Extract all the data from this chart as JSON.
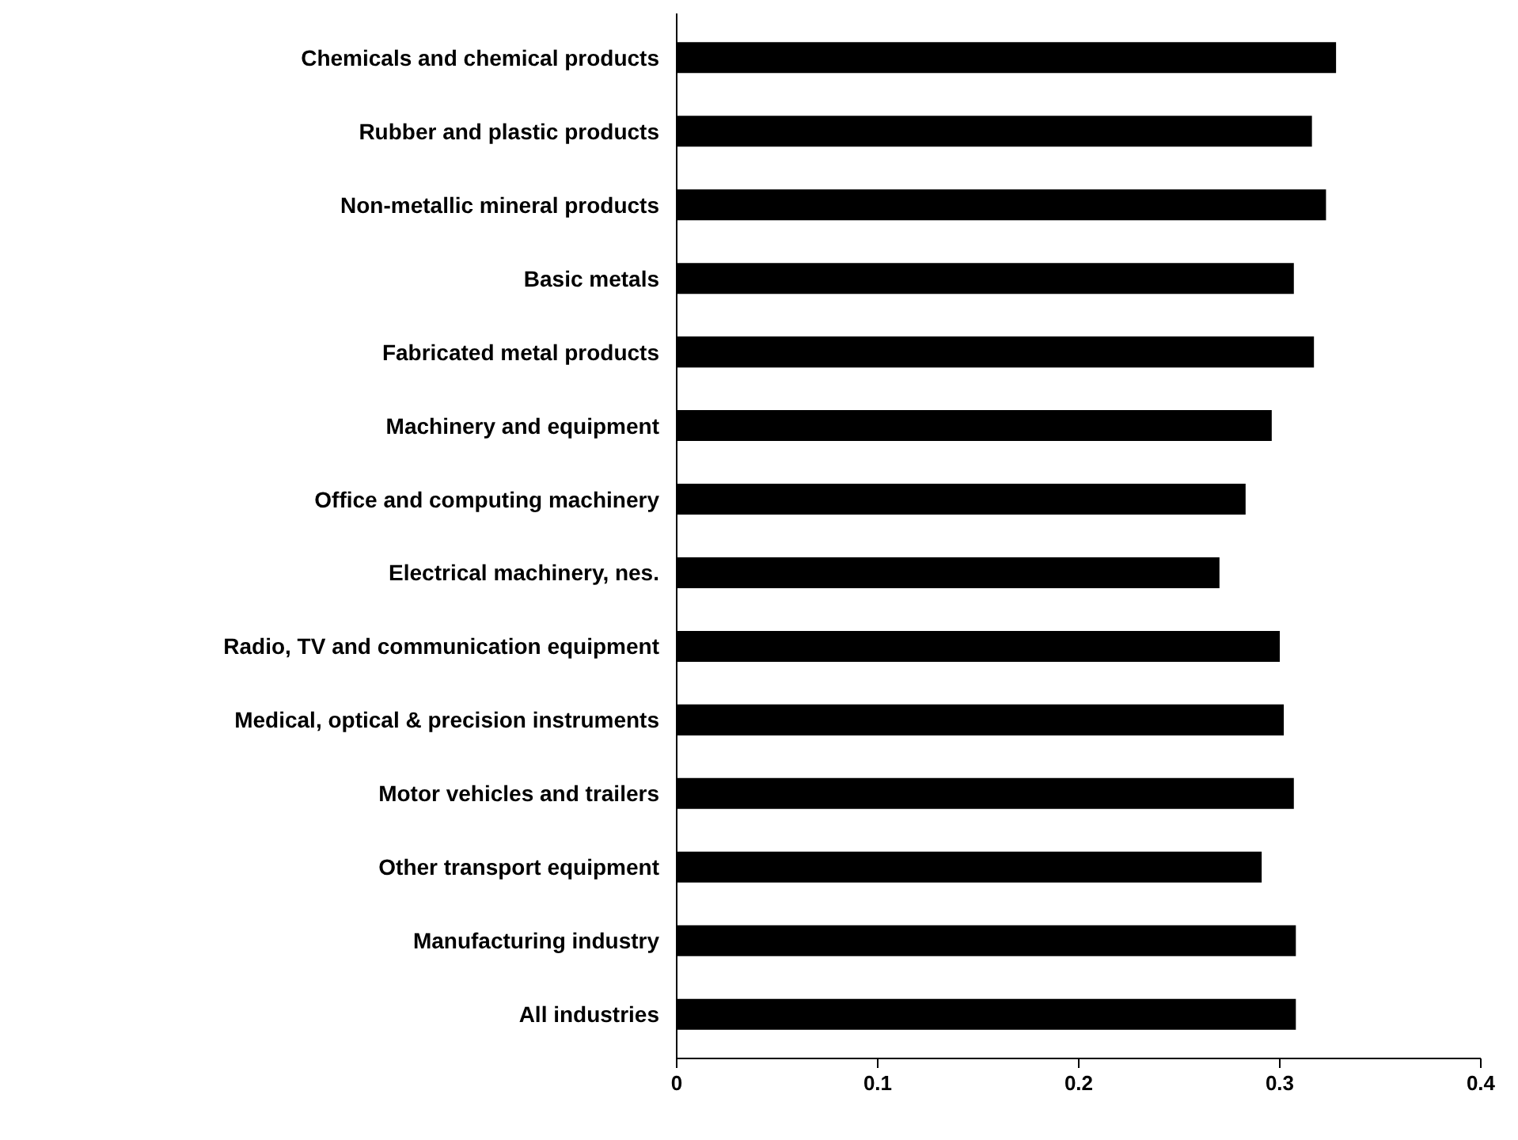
{
  "chart_data": {
    "type": "bar",
    "orientation": "horizontal",
    "categories": [
      "Chemicals and chemical products",
      "Rubber and plastic products",
      "Non-metallic mineral products",
      "Basic metals",
      "Fabricated metal products",
      "Machinery and equipment",
      "Office and computing machinery",
      "Electrical machinery, nes.",
      "Radio, TV and communication equipment",
      "Medical, optical & precision instruments",
      "Motor vehicles and trailers",
      "Other transport equipment",
      "Manufacturing industry",
      "All industries"
    ],
    "values": [
      0.328,
      0.316,
      0.323,
      0.307,
      0.317,
      0.296,
      0.283,
      0.27,
      0.3,
      0.302,
      0.307,
      0.291,
      0.308,
      0.308
    ],
    "color": "#000000",
    "xlim": [
      0,
      0.4
    ],
    "xticks": [
      0,
      0.1,
      0.2,
      0.3,
      0.4
    ],
    "grid": false
  }
}
